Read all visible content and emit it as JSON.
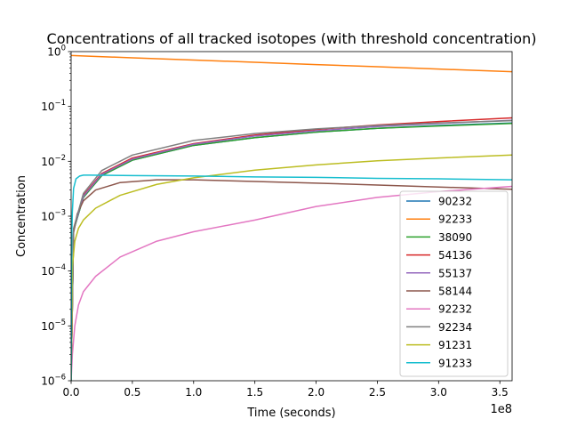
{
  "chart_data": {
    "type": "line",
    "title": "Concentrations of all tracked isotopes (with threshold concentration)",
    "xlabel": "Time (seconds)",
    "ylabel": "Concentration",
    "x_scale": "linear",
    "x_offset_label": "1e8",
    "y_scale": "log",
    "xlim": [
      0,
      3.6
    ],
    "ylim": [
      1e-06,
      1
    ],
    "x_ticks": [
      {
        "value": 0,
        "label": "0.0"
      },
      {
        "value": 0.5,
        "label": "0.5"
      },
      {
        "value": 1.0,
        "label": "1.0"
      },
      {
        "value": 1.5,
        "label": "1.5"
      },
      {
        "value": 2.0,
        "label": "2.0"
      },
      {
        "value": 2.5,
        "label": "2.5"
      },
      {
        "value": 3.0,
        "label": "3.0"
      },
      {
        "value": 3.5,
        "label": "3.5"
      }
    ],
    "y_ticks": [
      {
        "exp": -6,
        "base": "10",
        "sup": "−6"
      },
      {
        "exp": -5,
        "base": "10",
        "sup": "−5"
      },
      {
        "exp": -4,
        "base": "10",
        "sup": "−4"
      },
      {
        "exp": -3,
        "base": "10",
        "sup": "−3"
      },
      {
        "exp": -2,
        "base": "10",
        "sup": "−2"
      },
      {
        "exp": -1,
        "base": "10",
        "sup": "−1"
      },
      {
        "exp": 0,
        "base": "10",
        "sup": "0"
      }
    ],
    "grid": false,
    "legend_position": "lower-right",
    "series": [
      {
        "name": "90232",
        "color": "#1f77b4",
        "x": [
          0,
          0.02,
          0.1,
          0.25,
          0.5,
          1.0,
          1.5,
          2.0,
          2.5,
          3.0,
          3.6
        ],
        "y": [
          1e-06,
          0.00055,
          0.0022,
          0.0055,
          0.0105,
          0.0195,
          0.027,
          0.034,
          0.04,
          0.045,
          0.05
        ]
      },
      {
        "name": "92233",
        "color": "#ff7f0e",
        "x": [
          0,
          0.5,
          1.0,
          1.5,
          2.0,
          2.5,
          3.0,
          3.6
        ],
        "y": [
          0.85,
          0.77,
          0.7,
          0.64,
          0.58,
          0.53,
          0.48,
          0.43
        ]
      },
      {
        "name": "38090",
        "color": "#2ca02c",
        "x": [
          0,
          0.02,
          0.1,
          0.25,
          0.5,
          1.0,
          1.5,
          2.0,
          2.5,
          3.0,
          3.6
        ],
        "y": [
          1e-06,
          0.00055,
          0.0022,
          0.0055,
          0.0105,
          0.0195,
          0.027,
          0.034,
          0.04,
          0.044,
          0.049
        ]
      },
      {
        "name": "54136",
        "color": "#d62728",
        "x": [
          0,
          0.02,
          0.1,
          0.25,
          0.5,
          1.0,
          1.5,
          2.0,
          2.5,
          3.0,
          3.6
        ],
        "y": [
          1e-06,
          0.00058,
          0.0024,
          0.006,
          0.0115,
          0.021,
          0.03,
          0.038,
          0.046,
          0.053,
          0.062
        ]
      },
      {
        "name": "55137",
        "color": "#9467bd",
        "x": [
          0,
          0.02,
          0.1,
          0.25,
          0.5,
          1.0,
          1.5,
          2.0,
          2.5,
          3.0,
          3.6
        ],
        "y": [
          1e-06,
          0.00057,
          0.0023,
          0.0058,
          0.011,
          0.0205,
          0.029,
          0.036,
          0.043,
          0.049,
          0.056
        ]
      },
      {
        "name": "58144",
        "color": "#8c564b",
        "x": [
          0,
          0.02,
          0.05,
          0.1,
          0.2,
          0.4,
          0.7,
          1.0,
          1.5,
          2.0,
          2.5,
          3.0,
          3.6
        ],
        "y": [
          1e-06,
          0.0005,
          0.0011,
          0.0019,
          0.003,
          0.0041,
          0.0046,
          0.0046,
          0.0043,
          0.004,
          0.0037,
          0.0034,
          0.0031
        ]
      },
      {
        "name": "92232",
        "color": "#e377c2",
        "x": [
          0,
          0.01,
          0.03,
          0.06,
          0.1,
          0.2,
          0.4,
          0.7,
          1.0,
          1.5,
          2.0,
          2.5,
          3.0,
          3.6
        ],
        "y": [
          1e-06,
          3e-06,
          1e-05,
          2.4e-05,
          4.2e-05,
          8e-05,
          0.00018,
          0.00035,
          0.00052,
          0.00085,
          0.0015,
          0.0022,
          0.0028,
          0.0035
        ]
      },
      {
        "name": "92234",
        "color": "#7f7f7f",
        "x": [
          0,
          0.02,
          0.1,
          0.25,
          0.5,
          1.0,
          1.5,
          2.0,
          2.5,
          3.0,
          3.6
        ],
        "y": [
          1e-06,
          0.0006,
          0.0026,
          0.0068,
          0.013,
          0.024,
          0.032,
          0.039,
          0.045,
          0.05,
          0.055
        ]
      },
      {
        "name": "91231",
        "color": "#bcbd22",
        "x": [
          0,
          0.01,
          0.03,
          0.06,
          0.1,
          0.2,
          0.4,
          0.7,
          1.0,
          1.5,
          2.0,
          2.5,
          3.0,
          3.6
        ],
        "y": [
          1e-06,
          0.00012,
          0.00035,
          0.0006,
          0.00085,
          0.0014,
          0.0024,
          0.0038,
          0.005,
          0.0069,
          0.0086,
          0.0102,
          0.0115,
          0.013
        ]
      },
      {
        "name": "91233",
        "color": "#17becf",
        "x": [
          0,
          0.005,
          0.01,
          0.02,
          0.04,
          0.07,
          0.1,
          0.15,
          0.5,
          1.0,
          1.5,
          2.0,
          2.5,
          3.0,
          3.6
        ],
        "y": [
          1e-06,
          0.0004,
          0.0012,
          0.0032,
          0.0048,
          0.0054,
          0.0056,
          0.0056,
          0.0055,
          0.0054,
          0.0052,
          0.0051,
          0.0049,
          0.0048,
          0.0046
        ]
      }
    ]
  }
}
